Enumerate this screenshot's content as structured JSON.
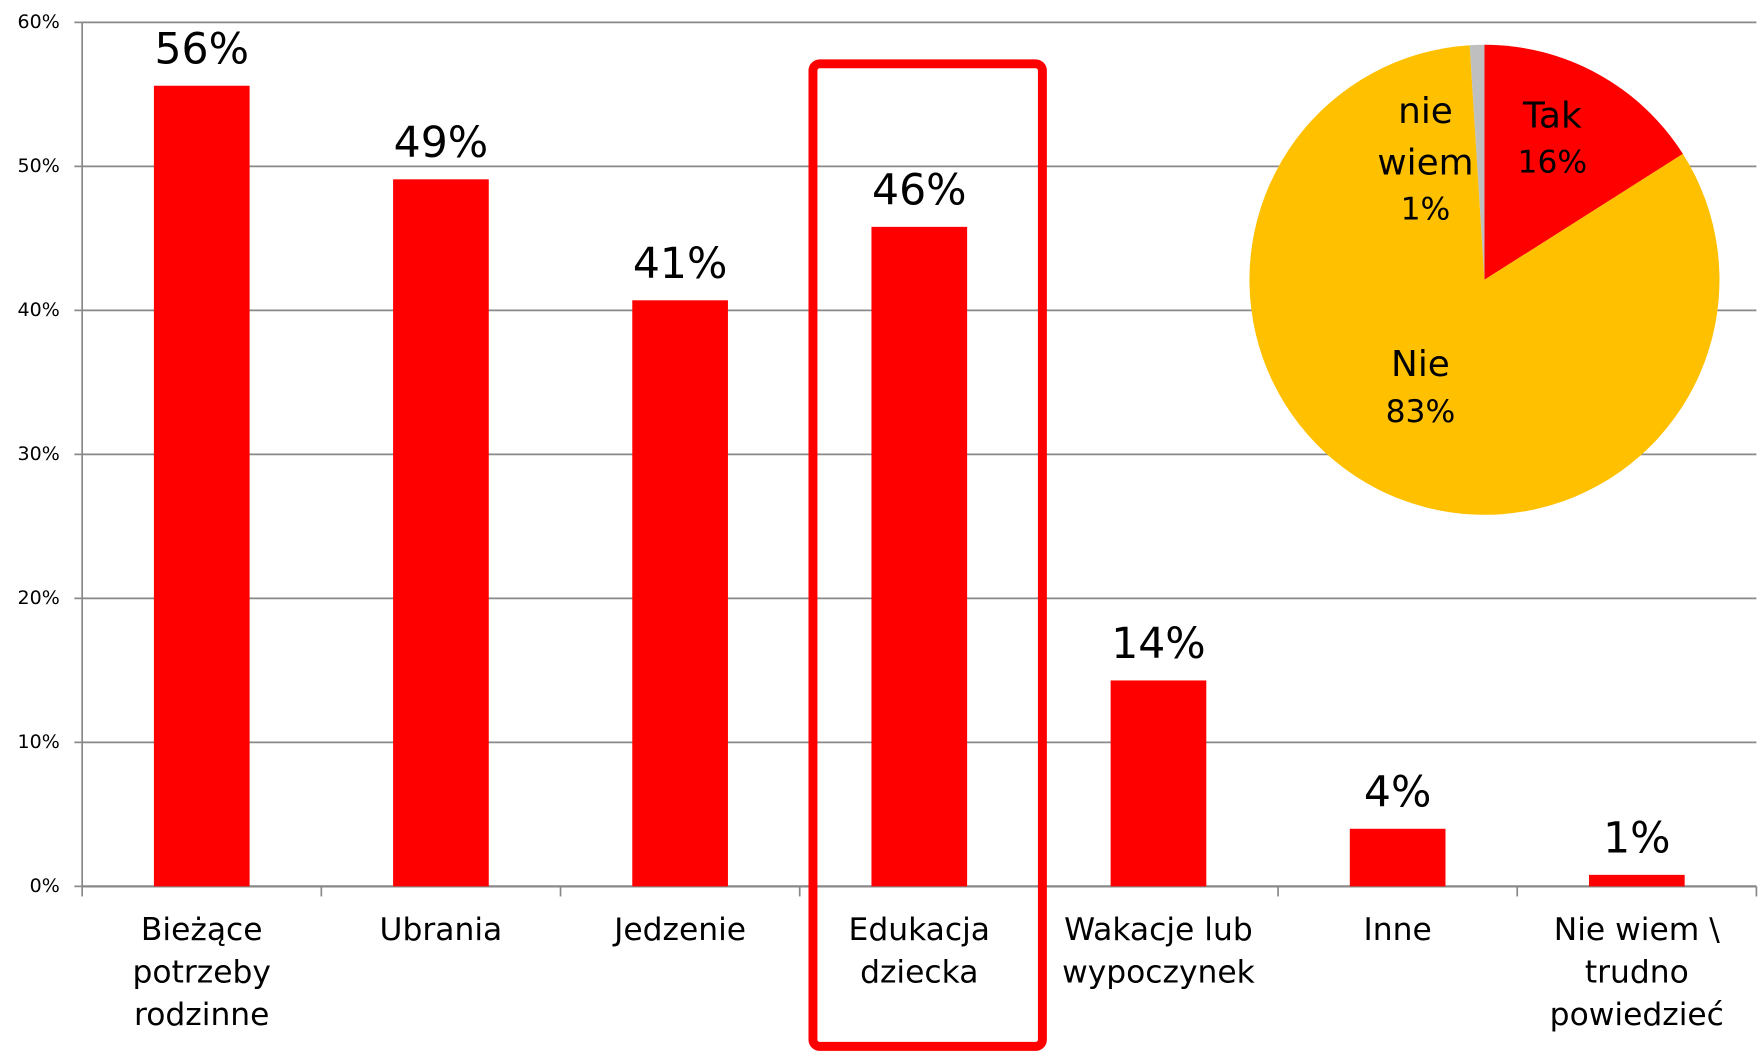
{
  "chart_data": [
    {
      "type": "bar",
      "categories": [
        "Bieżące\npotrzeby\nrodzinne",
        "Ubrania",
        "Jedzenie",
        "Edukacja\ndziecka",
        "Wakacje lub\nwypoczynek",
        "Inne",
        "Nie wiem \\\ntrudno\npowiedzieć"
      ],
      "values": [
        55.6,
        49.1,
        40.7,
        45.8,
        14.3,
        4.0,
        0.8
      ],
      "value_labels": [
        "56%",
        "49%",
        "41%",
        "46%",
        "14%",
        "4%",
        "1%"
      ],
      "color": "#ff0000",
      "ylim": [
        0,
        60
      ],
      "yticks": [
        {
          "value": 0,
          "label": "0%"
        },
        {
          "value": 10,
          "label": "10%"
        },
        {
          "value": 20,
          "label": "20%"
        },
        {
          "value": 30,
          "label": "30%"
        },
        {
          "value": 40,
          "label": "40%"
        },
        {
          "value": 50,
          "label": "50%"
        },
        {
          "value": 60,
          "label": "60%"
        }
      ],
      "grid": true
    },
    {
      "type": "pie",
      "categories": [
        "Tak",
        "Nie",
        "nie\nwiem"
      ],
      "values": [
        16,
        83,
        1
      ],
      "value_labels": [
        "16%",
        "83%",
        "1%"
      ],
      "colors": [
        "#ff0000",
        "#ffc000",
        "#bfbfbf"
      ]
    }
  ]
}
